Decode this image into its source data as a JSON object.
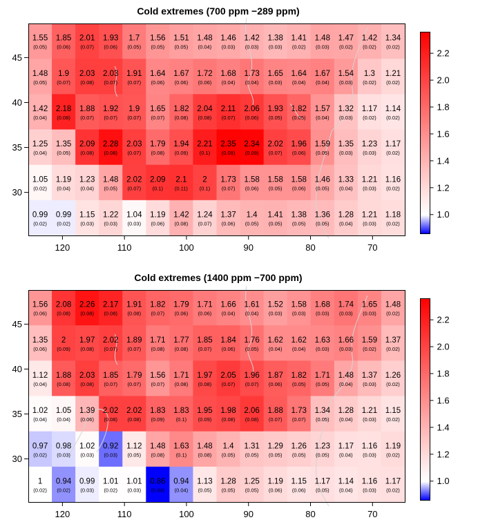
{
  "figure": {
    "colorbar_ticks": [
      "1.0",
      "1.2",
      "1.4",
      "1.6",
      "1.8",
      "2.0",
      "2.2"
    ],
    "colorbar_range": [
      0.86,
      2.36
    ],
    "colors": {
      "low": "#0000ff",
      "mid": "#ffffff",
      "high": "#ff0000",
      "border": "#000000",
      "coast": "#d4d4d4"
    }
  },
  "chart_data": [
    {
      "type": "heatmap",
      "title": "Cold extremes (700 ppm −289 ppm)",
      "xlabel": "",
      "ylabel": "",
      "x_ticks": [
        "120",
        "110",
        "100",
        "90",
        "80",
        "70"
      ],
      "y_ticks": [
        "45",
        "40",
        "35",
        "30"
      ],
      "x_range_deg_lon": [
        125.5,
        64.8
      ],
      "y_range_deg_lat": [
        25.2,
        48.8
      ],
      "rows": [
        {
          "values": [
            1.55,
            1.85,
            2.01,
            1.93,
            1.7,
            1.56,
            1.51,
            1.48,
            1.46,
            1.42,
            1.38,
            1.41,
            1.48,
            1.47,
            1.42,
            1.34
          ],
          "errors": [
            "(0.05)",
            "(0.06)",
            "(0.07)",
            "(0.06)",
            "(0.05)",
            "(0.05)",
            "(0.05)",
            "(0.04)",
            "(0.03)",
            "(0.03)",
            "(0.03)",
            "(0.02)",
            "(0.03)",
            "(0.02)",
            "(0.02)",
            "(0.02)"
          ]
        },
        {
          "values": [
            1.48,
            1.9,
            2.03,
            2.03,
            1.91,
            1.64,
            1.67,
            1.72,
            1.68,
            1.73,
            1.65,
            1.64,
            1.67,
            1.54,
            1.3,
            1.21
          ],
          "errors": [
            "(0.05)",
            "(0.07)",
            "(0.08)",
            "(0.07)",
            "(0.07)",
            "(0.06)",
            "(0.06)",
            "(0.06)",
            "(0.04)",
            "(0.04)",
            "(0.03)",
            "(0.04)",
            "(0.04)",
            "(0.03)",
            "(0.02)",
            "(0.02)"
          ]
        },
        {
          "values": [
            1.42,
            2.18,
            1.88,
            1.92,
            1.9,
            1.65,
            1.82,
            2.04,
            2.11,
            2.06,
            1.93,
            1.82,
            1.57,
            1.32,
            1.17,
            1.14
          ],
          "errors": [
            "(0.04)",
            "(0.08)",
            "(0.07)",
            "(0.07)",
            "(0.07)",
            "(0.07)",
            "(0.08)",
            "(0.08)",
            "(0.07)",
            "(0.06)",
            "(0.05)",
            "(0.05)",
            "(0.04)",
            "(0.03)",
            "(0.02)",
            "(0.02)"
          ]
        },
        {
          "values": [
            1.25,
            1.35,
            2.09,
            2.28,
            2.03,
            1.79,
            1.94,
            2.21,
            2.35,
            2.34,
            2.02,
            1.96,
            1.59,
            1.35,
            1.23,
            1.17
          ],
          "errors": [
            "(0.04)",
            "(0.05)",
            "(0.08)",
            "(0.08)",
            "(0.07)",
            "(0.08)",
            "(0.09)",
            "(0.1)",
            "(0.09)",
            "(0.09)",
            "(0.07)",
            "(0.06)",
            "(0.05)",
            "(0.03)",
            "(0.03)",
            "(0.02)"
          ]
        },
        {
          "values": [
            1.05,
            1.19,
            1.23,
            1.48,
            2.02,
            2.09,
            2.1,
            2,
            1.73,
            1.58,
            1.58,
            1.58,
            1.46,
            1.33,
            1.21,
            1.16
          ],
          "labels": [
            "1.05",
            "1.19",
            "1.23",
            "1.48",
            "2.02",
            "2.09",
            "2.1",
            "2",
            "1.73",
            "1.58",
            "1.58",
            "1.58",
            "1.46",
            "1.33",
            "1.21",
            "1.16"
          ],
          "errors": [
            "(0.02)",
            "(0.04)",
            "(0.04)",
            "(0.05)",
            "(0.07)",
            "(0.1)",
            "(0.11)",
            "(0.1)",
            "(0.07)",
            "(0.06)",
            "(0.05)",
            "(0.06)",
            "(0.05)",
            "(0.04)",
            "(0.03)",
            "(0.02)"
          ]
        },
        {
          "values": [
            0.99,
            0.99,
            1.15,
            1.22,
            1.04,
            1.19,
            1.42,
            1.24,
            1.37,
            1.4,
            1.41,
            1.38,
            1.36,
            1.28,
            1.21,
            1.18
          ],
          "errors": [
            "(0.02)",
            "(0.02)",
            "(0.03)",
            "(0.03)",
            "(0.03)",
            "(0.06)",
            "(0.08)",
            "(0.07)",
            "(0.06)",
            "(0.05)",
            "(0.05)",
            "(0.05)",
            "(0.05)",
            "(0.04)",
            "(0.03)",
            "(0.02)"
          ]
        }
      ]
    },
    {
      "type": "heatmap",
      "title": "Cold extremes (1400 ppm −700 ppm)",
      "xlabel": "",
      "ylabel": "",
      "x_ticks": [
        "120",
        "110",
        "100",
        "90",
        "80",
        "70"
      ],
      "y_ticks": [
        "45",
        "40",
        "35",
        "30"
      ],
      "x_range_deg_lon": [
        125.5,
        64.8
      ],
      "y_range_deg_lat": [
        25.2,
        48.8
      ],
      "rows": [
        {
          "values": [
            1.56,
            2.08,
            2.26,
            2.17,
            1.91,
            1.82,
            1.79,
            1.71,
            1.66,
            1.61,
            1.52,
            1.58,
            1.68,
            1.74,
            1.65,
            1.48
          ],
          "errors": [
            "(0.06)",
            "(0.08)",
            "(0.08)",
            "(0.08)",
            "(0.08)",
            "(0.07)",
            "(0.06)",
            "(0.06)",
            "(0.04)",
            "(0.04)",
            "(0.03)",
            "(0.03)",
            "(0.03)",
            "(0.03)",
            "(0.03)",
            "(0.02)"
          ]
        },
        {
          "values": [
            1.35,
            2,
            1.97,
            2.02,
            1.89,
            1.71,
            1.77,
            1.85,
            1.84,
            1.76,
            1.62,
            1.62,
            1.63,
            1.66,
            1.59,
            1.37
          ],
          "labels": [
            "1.35",
            "2",
            "1.97",
            "2.02",
            "1.89",
            "1.71",
            "1.77",
            "1.85",
            "1.84",
            "1.76",
            "1.62",
            "1.62",
            "1.63",
            "1.66",
            "1.59",
            "1.37"
          ],
          "errors": [
            "(0.06)",
            "(0.09)",
            "(0.08)",
            "(0.07)",
            "(0.07)",
            "(0.08)",
            "(0.08)",
            "(0.07)",
            "(0.06)",
            "(0.05)",
            "(0.04)",
            "(0.04)",
            "(0.03)",
            "(0.03)",
            "(0.02)",
            "(0.02)"
          ]
        },
        {
          "values": [
            1.12,
            1.88,
            2.03,
            1.85,
            1.79,
            1.56,
            1.71,
            1.97,
            2.05,
            1.96,
            1.87,
            1.82,
            1.71,
            1.48,
            1.37,
            1.26
          ],
          "errors": [
            "(0.04)",
            "(0.08)",
            "(0.08)",
            "(0.07)",
            "(0.07)",
            "(0.07)",
            "(0.08)",
            "(0.08)",
            "(0.07)",
            "(0.07)",
            "(0.06)",
            "(0.05)",
            "(0.05)",
            "(0.04)",
            "(0.03)",
            "(0.02)"
          ]
        },
        {
          "values": [
            1.02,
            1.05,
            1.39,
            2.02,
            2.02,
            1.83,
            1.83,
            1.95,
            1.98,
            2.06,
            1.88,
            1.73,
            1.34,
            1.28,
            1.21,
            1.15
          ],
          "errors": [
            "(0.04)",
            "(0.04)",
            "(0.06)",
            "(0.08)",
            "(0.08)",
            "(0.09)",
            "(0.1)",
            "(0.09)",
            "(0.08)",
            "(0.08)",
            "(0.07)",
            "(0.07)",
            "(0.05)",
            "(0.04)",
            "(0.03)",
            "(0.02)"
          ]
        },
        {
          "values": [
            0.97,
            0.98,
            1.02,
            0.92,
            1.12,
            1.48,
            1.63,
            1.48,
            1.4,
            1.31,
            1.29,
            1.26,
            1.23,
            1.17,
            1.16,
            1.19
          ],
          "errors": [
            "(0.02)",
            "(0.03)",
            "(0.03)",
            "(0.03)",
            "(0.05)",
            "(0.08)",
            "(0.1)",
            "(0.08)",
            "(0.05)",
            "(0.05)",
            "(0.05)",
            "(0.05)",
            "(0.05)",
            "(0.04)",
            "(0.03)",
            "(0.02)"
          ]
        },
        {
          "values": [
            1,
            0.94,
            0.99,
            1.01,
            1.01,
            0.86,
            0.94,
            1.13,
            1.28,
            1.25,
            1.19,
            1.15,
            1.17,
            1.14,
            1.16,
            1.17
          ],
          "labels": [
            "1",
            "0.94",
            "0.99",
            "1.01",
            "1.01",
            "0.86",
            "0.94",
            "1.13",
            "1.28",
            "1.25",
            "1.19",
            "1.15",
            "1.17",
            "1.14",
            "1.16",
            "1.17"
          ],
          "errors": [
            "(0.02)",
            "(0.02)",
            "(0.03)",
            "(0.02)",
            "(0.03)",
            "(0.04)",
            "(0.04)",
            "(0.05)",
            "(0.05)",
            "(0.05)",
            "(0.06)",
            "(0.06)",
            "(0.05)",
            "(0.04)",
            "(0.03)",
            "(0.02)"
          ]
        }
      ]
    }
  ]
}
